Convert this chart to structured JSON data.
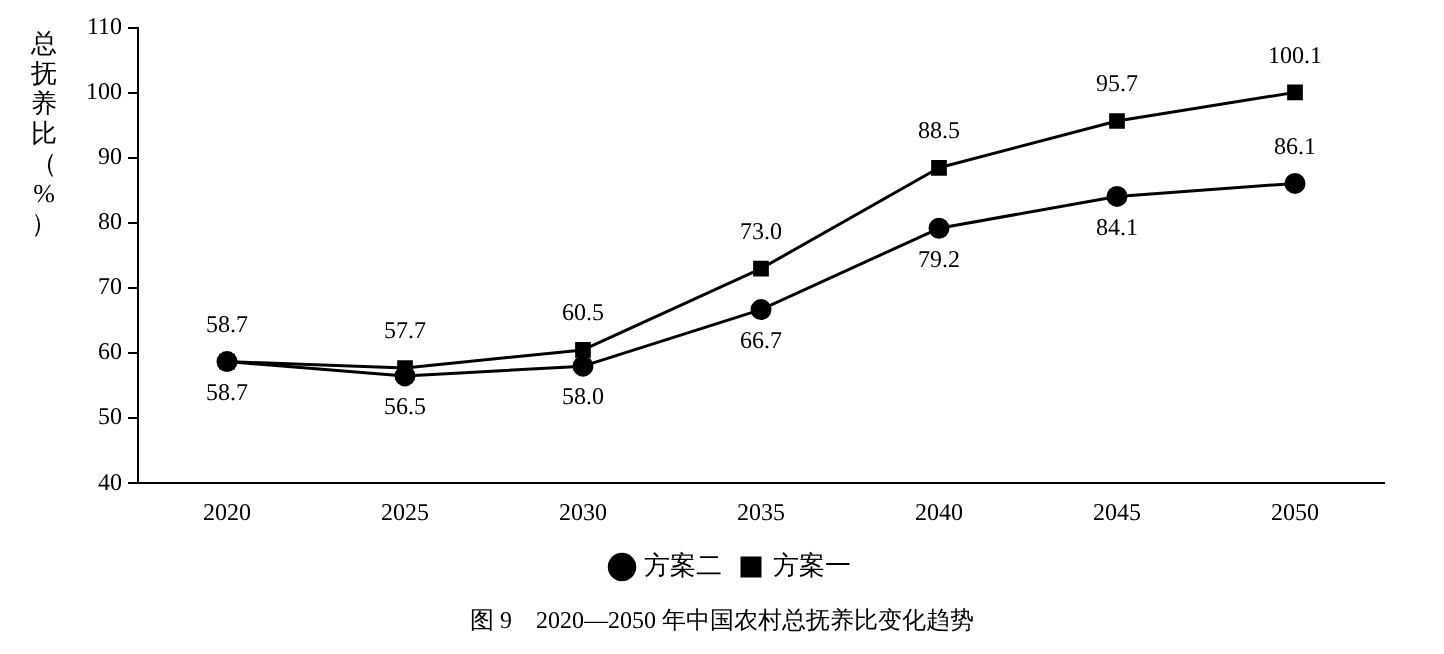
{
  "chart_data": {
    "type": "line",
    "title": "图 9　2020—2050 年中国农村总抚养比变化趋势",
    "ylabel": "总抚养比（%）",
    "categories": [
      "2020",
      "2025",
      "2030",
      "2035",
      "2040",
      "2045",
      "2050"
    ],
    "series": [
      {
        "name": "方案一",
        "color": "#000000",
        "marker": "square",
        "values": [
          58.7,
          57.7,
          60.5,
          73.0,
          88.5,
          95.7,
          100.1
        ],
        "value_labels": [
          "58.7",
          "57.7",
          "60.5",
          "73.0",
          "88.5",
          "95.7",
          "100.1"
        ]
      },
      {
        "name": "方案二",
        "color": "#000000",
        "marker": "circle",
        "values": [
          58.7,
          56.5,
          58.0,
          66.7,
          79.2,
          84.1,
          86.1
        ],
        "value_labels": [
          "58.7",
          "56.5",
          "58.0",
          "66.7",
          "79.2",
          "84.1",
          "86.1"
        ]
      }
    ],
    "ylim": [
      40,
      110
    ],
    "yticks": [
      40,
      50,
      60,
      70,
      80,
      90,
      100,
      110
    ],
    "grid": false,
    "legend": "bottom",
    "line_style": "solid"
  }
}
